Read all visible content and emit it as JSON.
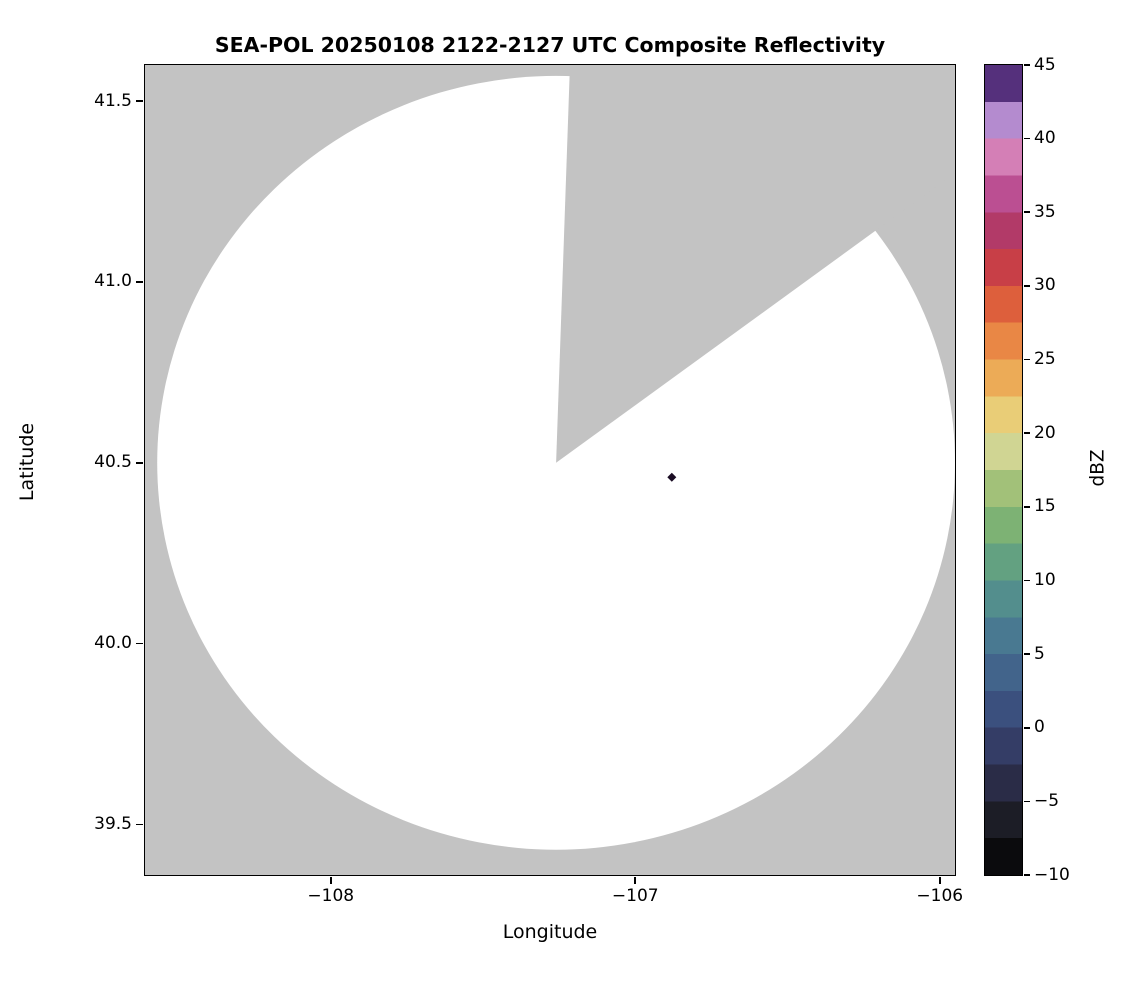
{
  "figure": {
    "window_title": "SEA-POL radar composite reflectivity figure"
  },
  "chart_data": {
    "type": "heatmap",
    "title": "SEA-POL 20250108 2122-2127 UTC Composite Reflectivity",
    "xlabel": "Longitude",
    "ylabel": "Latitude",
    "xlim": [
      -108.61,
      -105.95
    ],
    "ylim": [
      39.36,
      41.6
    ],
    "grid": false,
    "x_ticks": [
      {
        "value": -108,
        "label": "−108"
      },
      {
        "value": -107,
        "label": "−107"
      },
      {
        "value": -106,
        "label": "−106"
      }
    ],
    "y_ticks": [
      {
        "value": 39.5,
        "label": "39.5"
      },
      {
        "value": 40.0,
        "label": "40.0"
      },
      {
        "value": 40.5,
        "label": "40.5"
      },
      {
        "value": 41.0,
        "label": "41.0"
      },
      {
        "value": 41.5,
        "label": "41.5"
      }
    ],
    "radar_coverage": {
      "center_lon": -107.26,
      "center_lat": 40.5,
      "radius_deg_lon": 1.31,
      "radius_deg_lat": 1.07,
      "blocked_sector_azimuth_start_deg": 2,
      "blocked_sector_azimuth_end_deg": 54,
      "coverage_fill": "#ffffff",
      "no_data_fill": "#c3c3c3"
    },
    "echoes": [
      {
        "lon": -106.88,
        "lat": 40.46,
        "dbz": 45,
        "color": "#1a0d24"
      }
    ],
    "colorbar": {
      "label": "dBZ",
      "min": -10,
      "max": 45,
      "ticks": [
        {
          "value": -10,
          "label": "−10"
        },
        {
          "value": -5,
          "label": "−5"
        },
        {
          "value": 0,
          "label": "0"
        },
        {
          "value": 5,
          "label": "5"
        },
        {
          "value": 10,
          "label": "10"
        },
        {
          "value": 15,
          "label": "15"
        },
        {
          "value": 20,
          "label": "20"
        },
        {
          "value": 25,
          "label": "25"
        },
        {
          "value": 30,
          "label": "30"
        },
        {
          "value": 35,
          "label": "35"
        },
        {
          "value": 40,
          "label": "40"
        },
        {
          "value": 45,
          "label": "45"
        }
      ],
      "segments": [
        {
          "from": -10.0,
          "to": -7.5,
          "color": "#0b0b0d"
        },
        {
          "from": -7.5,
          "to": -5.0,
          "color": "#1c1d26"
        },
        {
          "from": -5.0,
          "to": -2.5,
          "color": "#2a2c47"
        },
        {
          "from": -2.5,
          "to": 0.0,
          "color": "#343d66"
        },
        {
          "from": 0.0,
          "to": 2.5,
          "color": "#3b507e"
        },
        {
          "from": 2.5,
          "to": 5.0,
          "color": "#42648b"
        },
        {
          "from": 5.0,
          "to": 7.5,
          "color": "#497991"
        },
        {
          "from": 7.5,
          "to": 10.0,
          "color": "#538e8d"
        },
        {
          "from": 10.0,
          "to": 12.5,
          "color": "#63a181"
        },
        {
          "from": 12.5,
          "to": 15.0,
          "color": "#7db274"
        },
        {
          "from": 15.0,
          "to": 17.5,
          "color": "#a2c179"
        },
        {
          "from": 17.5,
          "to": 20.0,
          "color": "#d0d593"
        },
        {
          "from": 20.0,
          "to": 22.5,
          "color": "#e9cd77"
        },
        {
          "from": 22.5,
          "to": 25.0,
          "color": "#ecab57"
        },
        {
          "from": 25.0,
          "to": 27.5,
          "color": "#e98745"
        },
        {
          "from": 27.5,
          "to": 30.0,
          "color": "#dd5f3c"
        },
        {
          "from": 30.0,
          "to": 32.5,
          "color": "#c83f47"
        },
        {
          "from": 32.5,
          "to": 35.0,
          "color": "#b23a68"
        },
        {
          "from": 35.0,
          "to": 37.5,
          "color": "#bb4f92"
        },
        {
          "from": 37.5,
          "to": 40.0,
          "color": "#d47fb6"
        },
        {
          "from": 40.0,
          "to": 42.5,
          "color": "#b48bcf"
        },
        {
          "from": 42.5,
          "to": 45.0,
          "color": "#55307c"
        }
      ]
    }
  }
}
